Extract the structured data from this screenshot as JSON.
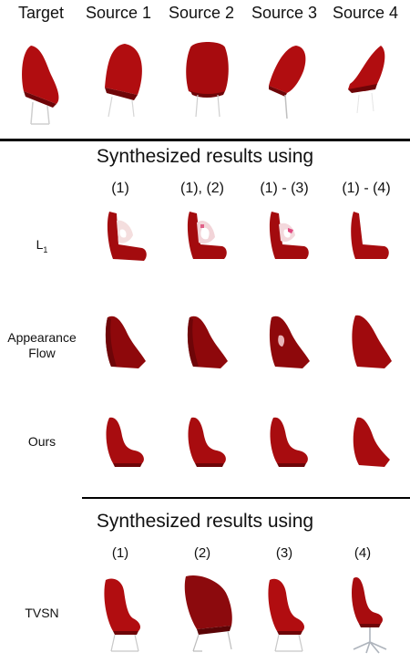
{
  "header": {
    "columns": [
      "Target",
      "Source 1",
      "Source 2",
      "Source 3",
      "Source 4"
    ]
  },
  "section1": {
    "title": "Synthesized results using",
    "columns": [
      "(1)",
      "(1), (2)",
      "(1) - (3)",
      "(1) - (4)"
    ],
    "rows": [
      {
        "label": "L",
        "subscript": "1"
      },
      {
        "label": "Appearance\nFlow"
      },
      {
        "label": "Ours"
      }
    ]
  },
  "section2": {
    "title": "Synthesized results using",
    "columns": [
      "(1)",
      "(2)",
      "(3)",
      "(4)"
    ],
    "rows": [
      {
        "label": "TVSN"
      }
    ]
  },
  "colors": {
    "chair": "#b10d10",
    "chair_dark": "#6e0508",
    "leg": "#bcbcbc"
  }
}
